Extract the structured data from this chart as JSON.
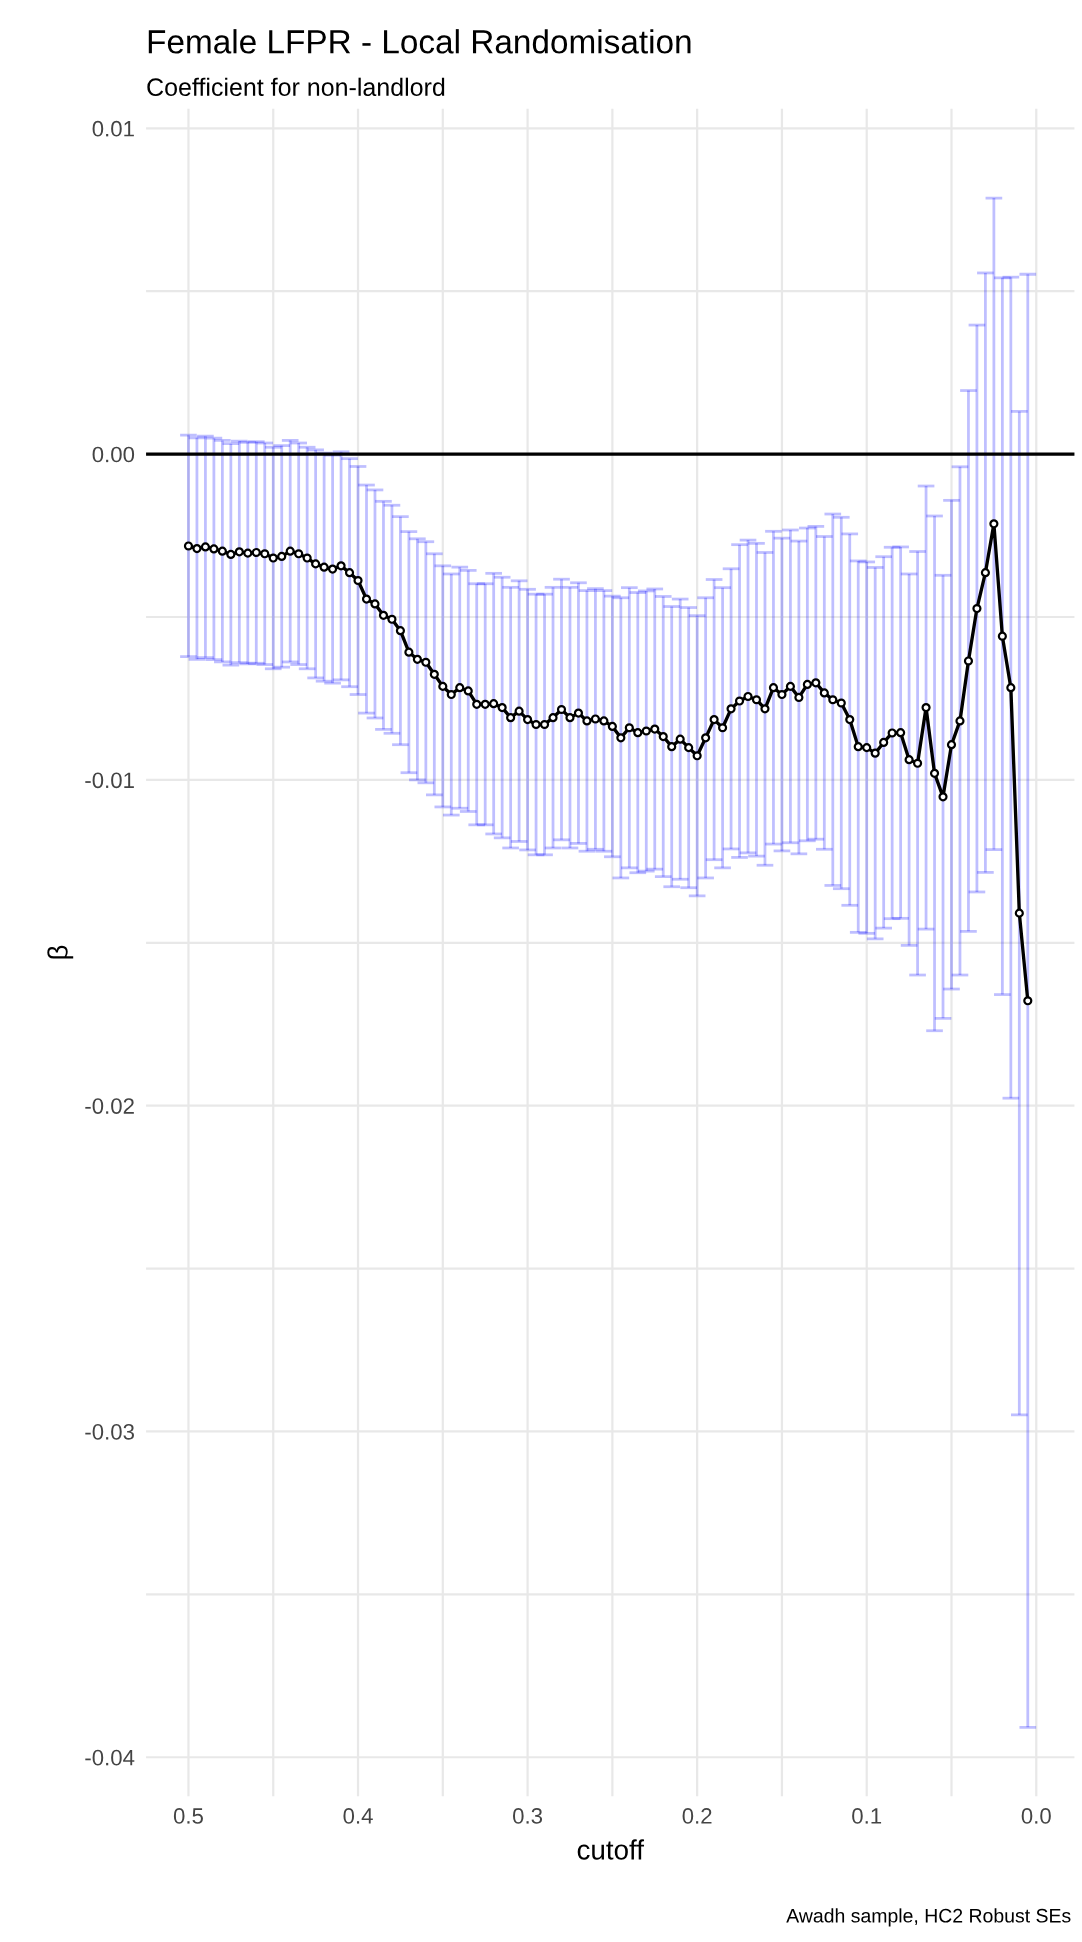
{
  "chart_data": {
    "type": "line",
    "title": "Female LFPR - Local Randomisation",
    "subtitle": "Coefficient for non-landlord",
    "xlabel": "cutoff",
    "ylabel": "β",
    "annotations": [
      "Awadh sample, HC2 Robust SEs"
    ],
    "x": [
      0.5,
      0.495,
      0.49,
      0.485,
      0.48,
      0.475,
      0.47,
      0.465,
      0.46,
      0.455,
      0.45,
      0.445,
      0.44,
      0.435,
      0.43,
      0.425,
      0.42,
      0.415,
      0.41,
      0.405,
      0.4,
      0.395,
      0.39,
      0.385,
      0.38,
      0.375,
      0.37,
      0.365,
      0.36,
      0.355,
      0.35,
      0.345,
      0.34,
      0.335,
      0.33,
      0.325,
      0.32,
      0.315,
      0.31,
      0.305,
      0.3,
      0.295,
      0.29,
      0.285,
      0.28,
      0.275,
      0.27,
      0.265,
      0.26,
      0.255,
      0.25,
      0.245,
      0.24,
      0.235,
      0.23,
      0.225,
      0.22,
      0.215,
      0.21,
      0.205,
      0.2,
      0.195,
      0.19,
      0.185,
      0.18,
      0.175,
      0.17,
      0.165,
      0.16,
      0.155,
      0.15,
      0.145,
      0.14,
      0.135,
      0.13,
      0.125,
      0.12,
      0.115,
      0.11,
      0.105,
      0.1,
      0.095,
      0.09,
      0.085,
      0.08,
      0.075,
      0.07,
      0.065,
      0.06,
      0.055,
      0.05,
      0.045,
      0.04,
      0.035,
      0.03,
      0.025,
      0.02,
      0.015,
      0.01,
      0.005
    ],
    "series": [
      {
        "color": "#000000",
        "values": [
          -0.00282,
          -0.0029,
          -0.00285,
          -0.00291,
          -0.00298,
          -0.00308,
          -0.003,
          -0.00304,
          -0.00302,
          -0.00306,
          -0.00319,
          -0.00314,
          -0.00298,
          -0.00306,
          -0.00319,
          -0.00337,
          -0.00347,
          -0.00353,
          -0.00343,
          -0.00364,
          -0.00388,
          -0.00445,
          -0.0046,
          -0.00495,
          -0.00507,
          -0.00542,
          -0.00608,
          -0.0063,
          -0.00639,
          -0.00676,
          -0.00713,
          -0.00738,
          -0.00717,
          -0.00727,
          -0.00768,
          -0.00768,
          -0.00766,
          -0.00778,
          -0.00809,
          -0.00789,
          -0.00815,
          -0.0083,
          -0.0083,
          -0.00809,
          -0.00784,
          -0.00809,
          -0.00795,
          -0.00819,
          -0.00813,
          -0.00819,
          -0.00836,
          -0.00871,
          -0.0084,
          -0.00855,
          -0.0085,
          -0.00844,
          -0.00867,
          -0.00898,
          -0.00875,
          -0.00901,
          -0.00926,
          -0.00871,
          -0.00815,
          -0.0084,
          -0.00782,
          -0.00758,
          -0.00744,
          -0.00754,
          -0.00782,
          -0.00717,
          -0.00738,
          -0.00713,
          -0.00747,
          -0.00707,
          -0.00702,
          -0.00733,
          -0.00754,
          -0.00764,
          -0.00815,
          -0.00898,
          -0.00901,
          -0.00918,
          -0.00885,
          -0.00856,
          -0.00855,
          -0.00938,
          -0.00949,
          -0.00778,
          -0.0098,
          -0.01052,
          -0.00892,
          -0.00819,
          -0.00635,
          -0.00474,
          -0.00364,
          -0.00214,
          -0.00559,
          -0.00717,
          -0.01409,
          -0.01678
        ],
        "errors": [
          0.0034,
          0.0034,
          0.0034,
          0.0034,
          0.0034,
          0.0034,
          0.0034,
          0.0034,
          0.0034,
          0.0034,
          0.0034,
          0.0034,
          0.0034,
          0.0034,
          0.0034,
          0.0035,
          0.0035,
          0.0035,
          0.0035,
          0.0035,
          0.0035,
          0.0035,
          0.0035,
          0.0035,
          0.0035,
          0.0035,
          0.0037,
          0.0037,
          0.0037,
          0.0037,
          0.0037,
          0.0037,
          0.0037,
          0.0037,
          0.0037,
          0.0037,
          0.004,
          0.004,
          0.004,
          0.004,
          0.004,
          0.004,
          0.004,
          0.004,
          0.004,
          0.004,
          0.004,
          0.004,
          0.004,
          0.004,
          0.004,
          0.0043,
          0.0043,
          0.0043,
          0.0043,
          0.0043,
          0.0043,
          0.0043,
          0.0043,
          0.0043,
          0.0043,
          0.0043,
          0.0043,
          0.0043,
          0.0043,
          0.0048,
          0.0048,
          0.0048,
          0.0048,
          0.0048,
          0.0048,
          0.0048,
          0.0048,
          0.0048,
          0.0048,
          0.0048,
          0.0057,
          0.0057,
          0.0057,
          0.0057,
          0.0057,
          0.0057,
          0.0057,
          0.0057,
          0.0057,
          0.0057,
          0.0065,
          0.0068,
          0.0079,
          0.0068,
          0.0075,
          0.0078,
          0.0083,
          0.0087,
          0.0092,
          0.01,
          0.011,
          0.0126,
          0.0154,
          0.0223
        ]
      }
    ],
    "marker": "circle",
    "line_style": "solid",
    "grid": true,
    "ref_lines": [
      {
        "axis": "y",
        "value": 0,
        "color": "#000000"
      }
    ],
    "xlim": [
      0.525,
      -0.0225
    ],
    "xticks": [
      {
        "value": 0.5,
        "label": "0.5"
      },
      {
        "value": 0.45,
        "label": null
      },
      {
        "value": 0.4,
        "label": "0.4"
      },
      {
        "value": 0.35,
        "label": null
      },
      {
        "value": 0.3,
        "label": "0.3"
      },
      {
        "value": 0.25,
        "label": null
      },
      {
        "value": 0.2,
        "label": "0.2"
      },
      {
        "value": 0.15,
        "label": null
      },
      {
        "value": 0.1,
        "label": "0.1"
      },
      {
        "value": 0.05,
        "label": null
      },
      {
        "value": 0,
        "label": "0.0"
      }
    ],
    "ylim": [
      -0.0412,
      0.0106
    ],
    "yticks": [
      {
        "value": 0.01,
        "label": "0.01"
      },
      {
        "value": 0.005,
        "label": null
      },
      {
        "value": 0,
        "label": "0.00"
      },
      {
        "value": -0.005,
        "label": null
      },
      {
        "value": -0.01,
        "label": "-0.01"
      },
      {
        "value": -0.015,
        "label": null
      },
      {
        "value": -0.02,
        "label": "-0.02"
      },
      {
        "value": -0.025,
        "label": null
      },
      {
        "value": -0.03,
        "label": "-0.03"
      },
      {
        "value": -0.035,
        "label": null
      },
      {
        "value": -0.04,
        "label": "-0.04"
      }
    ]
  }
}
